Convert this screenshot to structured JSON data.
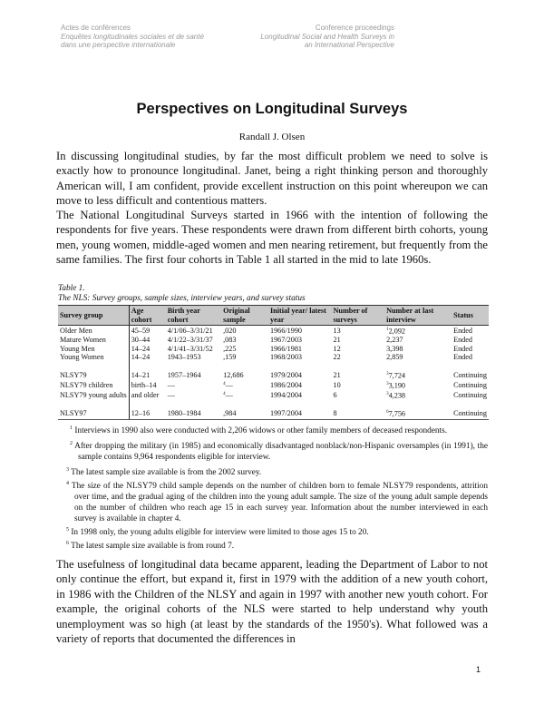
{
  "header": {
    "left": [
      "Actes de conférences",
      "Enquêtes longitudinales sociales et de santé",
      "dans une perspective internationale"
    ],
    "right": [
      "Conference proceedings",
      "Longitudinal Social and Health Surveys in",
      "an International Perspective"
    ]
  },
  "title": "Perspectives on Longitudinal Surveys",
  "author": "Randall J. Olsen",
  "paragraphs": [
    "In discussing longitudinal studies, by far the most difficult problem we need to solve is exactly how to pronounce longitudinal.  Janet, being a right thinking person and thoroughly American will, I am confident, provide excellent instruction on this point whereupon we can move to less difficult and contentious matters.",
    "The National Longitudinal Surveys started in 1966 with the intention of following the respondents for five years.  These respondents were drawn from different birth cohorts, young men, young women, middle-aged women and men nearing retirement, but frequently from the same families. The first four cohorts in Table 1 all started in the mid to late 1960s.",
    "The usefulness of longitudinal data became apparent, leading the Department of Labor to not only continue the effort, but expand it, first in 1979 with the addition of a new youth cohort, in 1986 with the Children of the NLSY and again in 1997 with another new youth cohort.  For example, the original cohorts of the NLS were started to help understand why youth unemployment was so high (at least by the standards of the 1950's).  What followed was a variety of reports that documented the differences in"
  ],
  "table": {
    "label": "Table 1.",
    "caption": "The NLS:  Survey groups, sample sizes, interview years, and survey status",
    "headers": [
      "Survey group",
      "Age cohort",
      "Birth year cohort",
      "Original sample",
      "Initial year/ latest year",
      "Number of surveys",
      "Number at last interview",
      "Status"
    ],
    "rows": [
      [
        "Older Men",
        "45–59",
        "4/1/06–3/31/21",
        ",020",
        "1966/1990",
        "13",
        "2,092",
        "Ended",
        "1"
      ],
      [
        "Mature Women",
        "30–44",
        "4/1/22–3/31/37",
        ",083",
        "1967/2003",
        "21",
        "2,237",
        "Ended",
        ""
      ],
      [
        "Young Men",
        "14–24",
        "4/1/41–3/31/52",
        ",225",
        "1966/1981",
        "12",
        "3,398",
        "Ended",
        ""
      ],
      [
        "Young Women",
        "14–24",
        "1943–1953",
        ",159",
        "1968/2003",
        "22",
        "2,859",
        "Ended",
        ""
      ],
      [
        "NLSY79",
        "14–21",
        "1957–1964",
        "12,686",
        "1979/2004",
        "21",
        "7,724",
        "Continuing",
        "3"
      ],
      [
        "NLSY79 children",
        "birth–14",
        "—",
        "—",
        "1986/2004",
        "10",
        "3,190",
        "Continuing",
        "3"
      ],
      [
        "NLSY79 young adults",
        "and older",
        "—",
        "—",
        "1994/2004",
        "6",
        "4,238",
        "Continuing",
        "3"
      ],
      [
        "NLSY97",
        "12–16",
        "1980–1984",
        ",984",
        "1997/2004",
        "8",
        "7,756",
        "Continuing",
        "6"
      ]
    ],
    "sample_notes": [
      "",
      "",
      "",
      "",
      "",
      "4",
      "4",
      ""
    ]
  },
  "footnotes": [
    {
      "n": "1",
      "text": "Interviews in 1990 also were conducted with 2,206 widows or other family members of deceased respondents."
    },
    {
      "n": "2",
      "text": "After dropping the military (in 1985) and economically disadvantaged nonblack/non-Hispanic oversamples (in 1991), the sample contains 9,964 respondents eligible for interview."
    },
    {
      "n": "3",
      "text": "The latest sample size available is from the 2002 survey."
    },
    {
      "n": "4",
      "text": "The size of the NLSY79 child sample depends on the number of children born to female NLSY79 respondents, attrition over time, and the gradual aging of the children into the young adult sample. The size of the young adult sample depends on the number of children who reach age 15 in each survey year.  Information about the number interviewed in each survey is available in chapter 4."
    },
    {
      "n": "5",
      "text": "In 1998 only, the young adults eligible for interview were limited to those ages 15 to 20."
    },
    {
      "n": "6",
      "text": "The latest sample size available is from round 7."
    }
  ],
  "page_number": "1"
}
